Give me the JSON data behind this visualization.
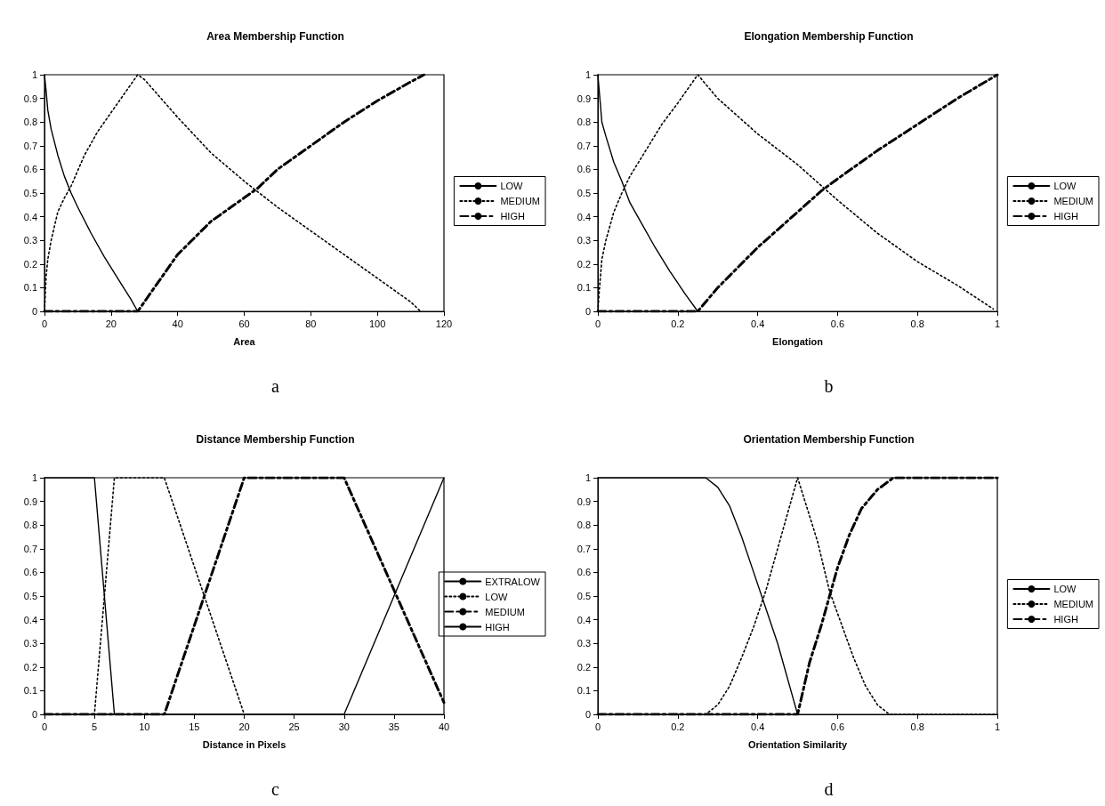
{
  "chart_data": [
    {
      "type": "line",
      "title": "Area Membership Function",
      "xlabel": "Area",
      "xlim": [
        0,
        120
      ],
      "xticks": [
        0,
        20,
        40,
        60,
        80,
        100,
        120
      ],
      "ylim": [
        0,
        1
      ],
      "yticks": [
        0,
        0.1,
        0.2,
        0.3,
        0.4,
        0.5,
        0.6,
        0.7,
        0.8,
        0.9,
        1
      ],
      "legend": "right",
      "annotations": [
        "a"
      ],
      "series": [
        {
          "name": "LOW",
          "color": "#000000",
          "line_style": "solid",
          "x": [
            0,
            0.5,
            1,
            2,
            4,
            6,
            8,
            10,
            14,
            18,
            22,
            26,
            28
          ],
          "values": [
            1,
            0.93,
            0.85,
            0.77,
            0.66,
            0.57,
            0.5,
            0.44,
            0.33,
            0.23,
            0.14,
            0.05,
            0
          ]
        },
        {
          "name": "MEDIUM",
          "color": "#000000",
          "line_style": "dotted",
          "x": [
            0,
            0.5,
            1,
            2,
            4,
            6,
            8,
            12,
            16,
            20,
            24,
            28,
            30,
            40,
            50,
            60,
            70,
            80,
            90,
            100,
            110,
            113
          ],
          "values": [
            0,
            0.15,
            0.22,
            0.3,
            0.42,
            0.48,
            0.53,
            0.66,
            0.76,
            0.84,
            0.92,
            1,
            0.98,
            0.82,
            0.67,
            0.55,
            0.44,
            0.34,
            0.24,
            0.14,
            0.04,
            0
          ]
        },
        {
          "name": "HIGH",
          "color": "#000000",
          "line_style": "dashed",
          "x": [
            0,
            28,
            30,
            40,
            50,
            60,
            64,
            70,
            80,
            90,
            100,
            110,
            114
          ],
          "values": [
            0,
            0,
            0.04,
            0.24,
            0.38,
            0.48,
            0.52,
            0.6,
            0.7,
            0.8,
            0.89,
            0.97,
            1
          ]
        }
      ]
    },
    {
      "type": "line",
      "title": "Elongation Membership Function",
      "xlabel": "Elongation",
      "xlim": [
        0,
        1
      ],
      "xticks": [
        0,
        0.2,
        0.4,
        0.6,
        0.8,
        1
      ],
      "ylim": [
        0,
        1
      ],
      "yticks": [
        0,
        0.1,
        0.2,
        0.3,
        0.4,
        0.5,
        0.6,
        0.7,
        0.8,
        0.9,
        1
      ],
      "legend": "right",
      "annotations": [
        "b"
      ],
      "series": [
        {
          "name": "LOW",
          "color": "#000000",
          "line_style": "solid",
          "x": [
            0,
            0.005,
            0.01,
            0.02,
            0.04,
            0.06,
            0.08,
            0.1,
            0.14,
            0.18,
            0.22,
            0.25
          ],
          "values": [
            1,
            0.9,
            0.8,
            0.74,
            0.63,
            0.55,
            0.46,
            0.4,
            0.28,
            0.17,
            0.07,
            0
          ]
        },
        {
          "name": "MEDIUM",
          "color": "#000000",
          "line_style": "dotted",
          "x": [
            0,
            0.005,
            0.01,
            0.02,
            0.04,
            0.06,
            0.08,
            0.12,
            0.16,
            0.2,
            0.25,
            0.3,
            0.4,
            0.5,
            0.6,
            0.7,
            0.8,
            0.9,
            0.99
          ],
          "values": [
            0,
            0.12,
            0.22,
            0.3,
            0.42,
            0.5,
            0.57,
            0.68,
            0.79,
            0.88,
            1,
            0.9,
            0.75,
            0.62,
            0.47,
            0.33,
            0.21,
            0.11,
            0.01
          ]
        },
        {
          "name": "HIGH",
          "color": "#000000",
          "line_style": "dashed",
          "x": [
            0,
            0.25,
            0.3,
            0.4,
            0.5,
            0.56,
            0.6,
            0.7,
            0.8,
            0.9,
            1
          ],
          "values": [
            0,
            0,
            0.1,
            0.27,
            0.42,
            0.51,
            0.56,
            0.68,
            0.79,
            0.9,
            1
          ]
        }
      ]
    },
    {
      "type": "line",
      "title": "Distance Membership Function",
      "xlabel": "Distance in Pixels",
      "xlim": [
        0,
        40
      ],
      "xticks": [
        0,
        5,
        10,
        15,
        20,
        25,
        30,
        35,
        40
      ],
      "ylim": [
        0,
        1
      ],
      "yticks": [
        0,
        0.1,
        0.2,
        0.3,
        0.4,
        0.5,
        0.6,
        0.7,
        0.8,
        0.9,
        1
      ],
      "legend": "right",
      "annotations": [
        "c"
      ],
      "series": [
        {
          "name": "EXTRALOW",
          "color": "#000000",
          "line_style": "solid",
          "x": [
            0,
            5,
            7
          ],
          "values": [
            1,
            1,
            0
          ]
        },
        {
          "name": "LOW",
          "color": "#000000",
          "line_style": "dotted",
          "x": [
            0,
            5,
            7,
            12,
            20
          ],
          "values": [
            0,
            0,
            1,
            1,
            0
          ]
        },
        {
          "name": "MEDIUM",
          "color": "#000000",
          "line_style": "dashed",
          "x": [
            0,
            12,
            20,
            30,
            40
          ],
          "values": [
            0,
            0,
            1,
            1,
            0.05
          ]
        },
        {
          "name": "HIGH",
          "color": "#000000",
          "line_style": "solid",
          "x": [
            0,
            30,
            40
          ],
          "values": [
            0,
            0,
            1
          ]
        }
      ]
    },
    {
      "type": "line",
      "title": "Orientation Membership Function",
      "xlabel": "Orientation Similarity",
      "xlim": [
        0,
        1
      ],
      "xticks": [
        0,
        0.2,
        0.4,
        0.6,
        0.8,
        1
      ],
      "ylim": [
        0,
        1
      ],
      "yticks": [
        0,
        0.1,
        0.2,
        0.3,
        0.4,
        0.5,
        0.6,
        0.7,
        0.8,
        0.9,
        1
      ],
      "legend": "right",
      "annotations": [
        "d"
      ],
      "series": [
        {
          "name": "LOW",
          "color": "#000000",
          "line_style": "solid",
          "x": [
            0,
            0.27,
            0.3,
            0.33,
            0.36,
            0.39,
            0.42,
            0.45,
            0.48,
            0.5
          ],
          "values": [
            1,
            1,
            0.96,
            0.88,
            0.75,
            0.6,
            0.45,
            0.3,
            0.12,
            0
          ]
        },
        {
          "name": "MEDIUM",
          "color": "#000000",
          "line_style": "dotted",
          "x": [
            0,
            0.27,
            0.3,
            0.33,
            0.36,
            0.39,
            0.42,
            0.45,
            0.5,
            0.55,
            0.58,
            0.61,
            0.64,
            0.67,
            0.7,
            0.73,
            1
          ],
          "values": [
            0,
            0,
            0.04,
            0.12,
            0.24,
            0.37,
            0.52,
            0.7,
            1,
            0.73,
            0.52,
            0.38,
            0.24,
            0.12,
            0.04,
            0,
            0
          ]
        },
        {
          "name": "HIGH",
          "color": "#000000",
          "line_style": "dashed",
          "x": [
            0,
            0.5,
            0.53,
            0.56,
            0.58,
            0.6,
            0.63,
            0.66,
            0.7,
            0.74,
            1
          ],
          "values": [
            0,
            0,
            0.22,
            0.38,
            0.5,
            0.62,
            0.76,
            0.87,
            0.95,
            1,
            1
          ]
        }
      ]
    }
  ]
}
